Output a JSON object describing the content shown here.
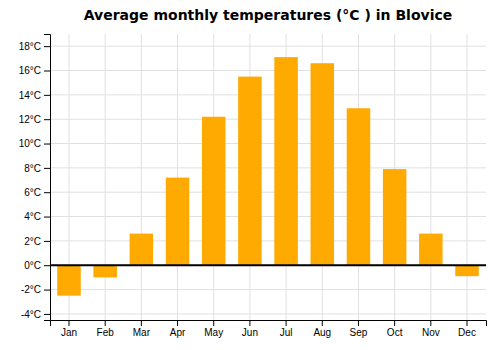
{
  "chart_data": {
    "type": "bar",
    "title": "Average monthly temperatures (°C ) in Blovice",
    "categories": [
      "Jan",
      "Feb",
      "Mar",
      "Apr",
      "May",
      "Jun",
      "Jul",
      "Aug",
      "Sep",
      "Oct",
      "Nov",
      "Dec"
    ],
    "values": [
      -2.5,
      -1.0,
      2.6,
      7.2,
      12.2,
      15.5,
      17.1,
      16.6,
      12.9,
      7.9,
      2.6,
      -0.9
    ],
    "color": "#FFAA00",
    "ylim": [
      -4.5,
      19
    ],
    "yticks": [
      {
        "value": -4,
        "label": "-4°C"
      },
      {
        "value": -2,
        "label": "-2°C"
      },
      {
        "value": 0,
        "label": "0°C"
      },
      {
        "value": 2,
        "label": "2°C"
      },
      {
        "value": 4,
        "label": "4°C"
      },
      {
        "value": 6,
        "label": "6°C"
      },
      {
        "value": 8,
        "label": "8°C"
      },
      {
        "value": 10,
        "label": "10°C"
      },
      {
        "value": 12,
        "label": "12°C"
      },
      {
        "value": 14,
        "label": "14°C"
      },
      {
        "value": 16,
        "label": "16°C"
      },
      {
        "value": 18,
        "label": "18°C"
      }
    ],
    "grid": true
  }
}
